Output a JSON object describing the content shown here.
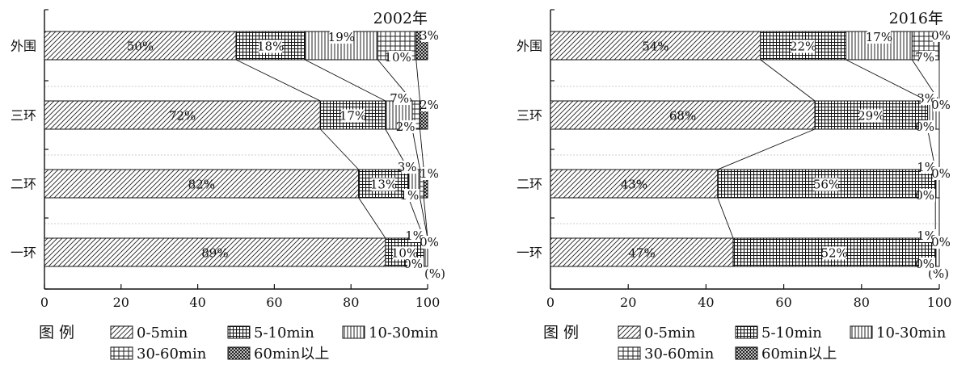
{
  "unit_label": "(%)",
  "legend": {
    "title": "图  例",
    "items": [
      {
        "key": "d05",
        "label": "0-5min",
        "pattern": "diag"
      },
      {
        "key": "d510",
        "label": "5-10min",
        "pattern": "densegrid"
      },
      {
        "key": "d1030",
        "label": "10-30min",
        "pattern": "vlines"
      },
      {
        "key": "d3060",
        "label": "30-60min",
        "pattern": "grid"
      },
      {
        "key": "d60",
        "label": "60min以上",
        "pattern": "cross"
      }
    ]
  },
  "chart_data": [
    {
      "type": "bar",
      "orientation": "horizontal",
      "stacked": true,
      "title": "2002年",
      "categories": [
        "外围",
        "三环",
        "二环",
        "一环"
      ],
      "xlim": [
        0,
        100
      ],
      "xticks": [
        0,
        20,
        40,
        60,
        80,
        100
      ],
      "series": [
        {
          "name": "0-5min",
          "values": [
            50,
            72,
            82,
            89
          ]
        },
        {
          "name": "5-10min",
          "values": [
            18,
            17,
            13,
            10
          ]
        },
        {
          "name": "10-30min",
          "values": [
            19,
            7,
            3,
            1
          ]
        },
        {
          "name": "30-60min",
          "values": [
            10,
            2,
            1,
            0
          ]
        },
        {
          "name": "60min以上",
          "values": [
            3,
            2,
            1,
            0
          ]
        }
      ]
    },
    {
      "type": "bar",
      "orientation": "horizontal",
      "stacked": true,
      "title": "2016年",
      "categories": [
        "外围",
        "三环",
        "二环",
        "一环"
      ],
      "xlim": [
        0,
        100
      ],
      "xticks": [
        0,
        20,
        40,
        60,
        80,
        100
      ],
      "series": [
        {
          "name": "0-5min",
          "values": [
            54,
            68,
            43,
            47
          ]
        },
        {
          "name": "5-10min",
          "values": [
            22,
            29,
            56,
            52
          ]
        },
        {
          "name": "10-30min",
          "values": [
            17,
            3,
            1,
            1
          ]
        },
        {
          "name": "30-60min",
          "values": [
            7,
            0,
            0,
            0
          ]
        },
        {
          "name": "60min以上",
          "values": [
            0,
            0,
            0,
            0
          ]
        }
      ]
    }
  ]
}
